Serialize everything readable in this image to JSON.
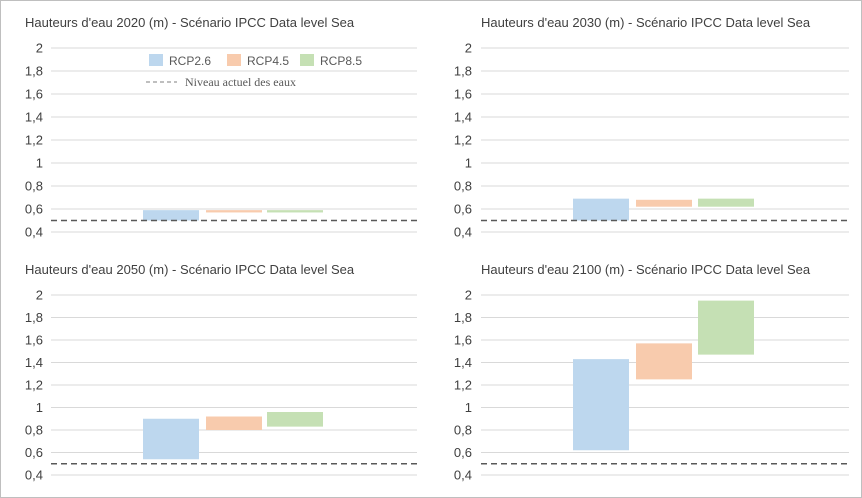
{
  "colors": {
    "rcp26": "#bdd7ee",
    "rcp45": "#f8cbad",
    "rcp85": "#c5e0b4",
    "grid": "#d9d9d9",
    "baseline": "#595959",
    "text": "#404040"
  },
  "legend": {
    "rcp26": "RCP2.6",
    "rcp45": "RCP4.5",
    "rcp85": "RCP8.5",
    "baseline": "Niveau actuel des eaux"
  },
  "chart_data": [
    {
      "type": "bar",
      "title": "Hauteurs d'eau 2020 (m) - Scénario IPCC Data level Sea",
      "ylim": [
        0.4,
        2
      ],
      "yticks": [
        "0,4",
        "0,6",
        "0,8",
        "1",
        "1,2",
        "1,4",
        "1,6",
        "1,8",
        "2"
      ],
      "grid": true,
      "legend_position": "top",
      "baseline": 0.5,
      "series": [
        {
          "name": "RCP2.6",
          "low": 0.5,
          "high": 0.59
        },
        {
          "name": "RCP4.5",
          "low": 0.57,
          "high": 0.59
        },
        {
          "name": "RCP8.5",
          "low": 0.57,
          "high": 0.59
        }
      ]
    },
    {
      "type": "bar",
      "title": "Hauteurs d'eau 2030 (m) - Scénario IPCC Data level Sea",
      "ylim": [
        0.4,
        2
      ],
      "yticks": [
        "0,4",
        "0,6",
        "0,8",
        "1",
        "1,2",
        "1,4",
        "1,6",
        "1,8",
        "2"
      ],
      "grid": true,
      "baseline": 0.5,
      "series": [
        {
          "name": "RCP2.6",
          "low": 0.5,
          "high": 0.69
        },
        {
          "name": "RCP4.5",
          "low": 0.62,
          "high": 0.68
        },
        {
          "name": "RCP8.5",
          "low": 0.62,
          "high": 0.69
        }
      ]
    },
    {
      "type": "bar",
      "title": "Hauteurs d'eau 2050 (m) - Scénario IPCC Data level Sea",
      "ylim": [
        0.4,
        2
      ],
      "yticks": [
        "0,4",
        "0,6",
        "0,8",
        "1",
        "1,2",
        "1,4",
        "1,6",
        "1,8",
        "2"
      ],
      "grid": true,
      "baseline": 0.5,
      "series": [
        {
          "name": "RCP2.6",
          "low": 0.54,
          "high": 0.9
        },
        {
          "name": "RCP4.5",
          "low": 0.8,
          "high": 0.92
        },
        {
          "name": "RCP8.5",
          "low": 0.83,
          "high": 0.96
        }
      ]
    },
    {
      "type": "bar",
      "title": "Hauteurs d'eau 2100 (m) - Scénario IPCC Data level Sea",
      "ylim": [
        0.4,
        2
      ],
      "yticks": [
        "0,4",
        "0,6",
        "0,8",
        "1",
        "1,2",
        "1,4",
        "1,6",
        "1,8",
        "2"
      ],
      "grid": true,
      "baseline": 0.5,
      "series": [
        {
          "name": "RCP2.6",
          "low": 0.62,
          "high": 1.43
        },
        {
          "name": "RCP4.5",
          "low": 1.25,
          "high": 1.57
        },
        {
          "name": "RCP8.5",
          "low": 1.47,
          "high": 1.95
        }
      ]
    }
  ]
}
